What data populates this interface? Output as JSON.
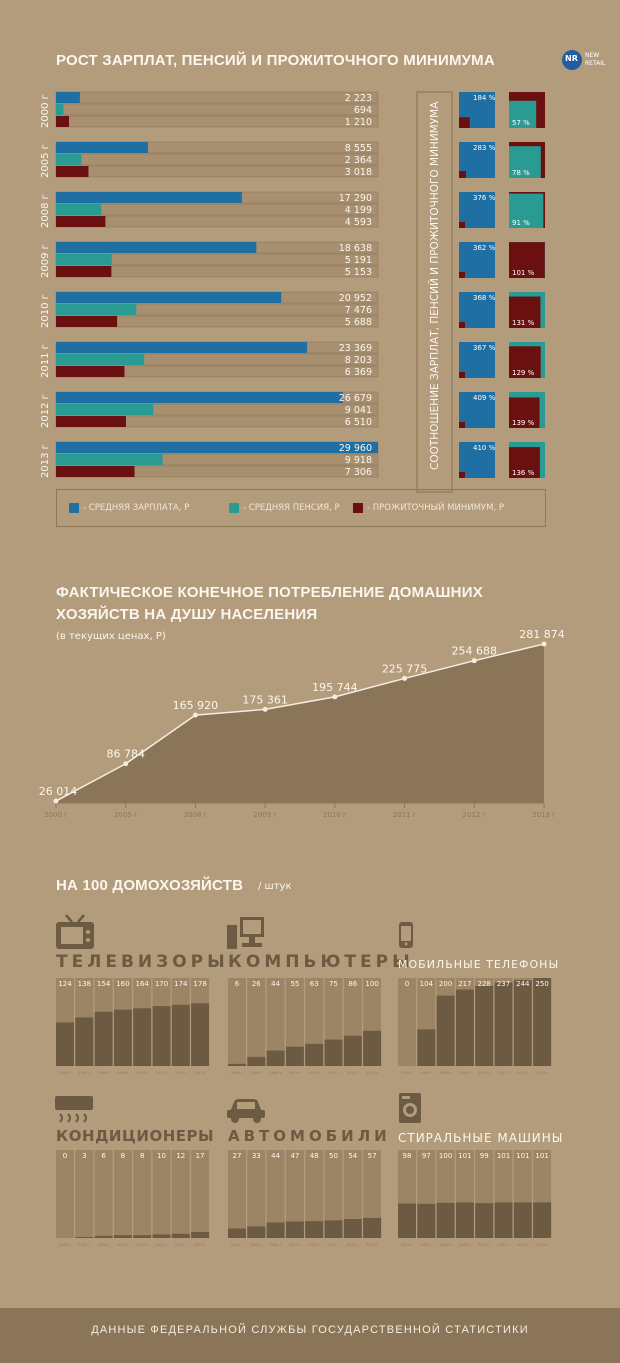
{
  "section1": {
    "title": "РОСТ ЗАРПЛАТ, ПЕНСИЙ И ПРОЖИТОЧНОГО МИНИМУМА",
    "logo": {
      "abbr": "NR",
      "line1": "NEW",
      "line2": "RETAIL"
    },
    "ratio_label": "СООТНОШЕНИЕ ЗАРПЛАТ, ПЕНСИЙ И ПРОЖИТОЧНОГО МИНИМУМА",
    "legend": [
      "- СРЕДНЯЯ ЗАРПЛАТА, Р",
      "- СРЕДНЯЯ ПЕНСИЯ, Р",
      "- ПРОЖИТОЧНЫЙ МИНИМУМ, Р"
    ]
  },
  "section2": {
    "title_line1": "ФАКТИЧЕСКОЕ КОНЕЧНОЕ ПОТРЕБЛЕНИЕ ДОМАШНИХ",
    "title_line2": "ХОЗЯЙСТВ НА ДУШУ НАСЕЛЕНИЯ",
    "subtitle": "(в текущих ценах, Р)"
  },
  "section3": {
    "title": "НА 100 ДОМОХОЗЯЙСТВ",
    "unit": "/ штук"
  },
  "footer": "ДАННЫЕ ФЕДЕРАЛЬНОЙ СЛУЖБЫ ГОСУДАРСТВЕННОЙ СТАТИСТИКИ",
  "colors": {
    "salary": "#1f6fa3",
    "pension": "#2a9b92",
    "minimum": "#6b1010",
    "track": "#a78f6f",
    "dark": "#6d5a43"
  },
  "chart_data": [
    {
      "type": "bar",
      "orientation": "horizontal",
      "categories": [
        "2000 г",
        "2005 г",
        "2008 г",
        "2009 г",
        "2010 г",
        "2011 г",
        "2012 г",
        "2013 г"
      ],
      "labels": {
        "salary": [
          "2 223",
          "8 555",
          "17 290",
          "18 638",
          "20 952",
          "23 369",
          "26 679",
          "29 960"
        ],
        "pension": [
          "694",
          "2 364",
          "4 199",
          "5 191",
          "7 476",
          "8 203",
          "9 041",
          "9 918"
        ],
        "minimum": [
          "1 210",
          "3 018",
          "4 593",
          "5 153",
          "5 688",
          "6 369",
          "6 510",
          "7 306"
        ]
      },
      "series": [
        {
          "key": "salary",
          "name": "- СРЕДНЯЯ ЗАРПЛАТА, Р",
          "values": [
            2223,
            8555,
            17290,
            18638,
            20952,
            23369,
            26679,
            29960
          ]
        },
        {
          "key": "pension",
          "name": "- СРЕДНЯЯ ПЕНСИЯ, Р",
          "values": [
            694,
            2364,
            4199,
            5191,
            7476,
            8203,
            9041,
            9918
          ]
        },
        {
          "key": "minimum",
          "name": "- ПРОЖИТОЧНЫЙ МИНИМУМ, Р",
          "values": [
            1210,
            3018,
            4593,
            5153,
            5688,
            6369,
            6510,
            7306
          ]
        }
      ],
      "xlim": [
        0,
        29960
      ]
    },
    {
      "type": "table",
      "columns": [
        "salary_to_minimum",
        "pension_to_minimum"
      ],
      "labels_left": [
        "184 %",
        "283 %",
        "376 %",
        "362 %",
        "368 %",
        "367 %",
        "409 %",
        "410 %"
      ],
      "labels_right": [
        "57 %",
        "78 %",
        "91 %",
        "101 %",
        "131 %",
        "129 %",
        "139 %",
        "136 %"
      ],
      "values_left": [
        184,
        283,
        376,
        362,
        368,
        367,
        409,
        410
      ],
      "values_right": [
        57,
        78,
        91,
        101,
        131,
        129,
        139,
        136
      ]
    },
    {
      "type": "area",
      "x": [
        "2000 г",
        "2005 г",
        "2008 г",
        "2009 г",
        "2010 г",
        "2011 г",
        "2012 г",
        "2013 г"
      ],
      "values": [
        26014,
        86784,
        165920,
        175361,
        195744,
        225775,
        254688,
        281874
      ],
      "labels": [
        "26 014",
        "86 784",
        "165 920",
        "175 361",
        "195 744",
        "225 775",
        "254 688",
        "281 874"
      ],
      "ylim": [
        0,
        281874
      ]
    },
    {
      "type": "bar",
      "panels": [
        {
          "title": "ТЕЛЕВИЗОРЫ",
          "icon": "tv-icon",
          "values": [
            124,
            138,
            154,
            160,
            164,
            170,
            174,
            178
          ],
          "max": 250
        },
        {
          "title": "КОМПЬЮТЕРЫ",
          "icon": "computer-icon",
          "values": [
            6,
            26,
            44,
            55,
            63,
            75,
            86,
            100
          ],
          "max": 250
        },
        {
          "title": "МОБИЛЬНЫЕ ТЕЛЕФОНЫ",
          "icon": "phone-icon",
          "values": [
            0,
            104,
            200,
            217,
            228,
            237,
            244,
            250
          ],
          "max": 250
        },
        {
          "title": "КОНДИЦИОНЕРЫ",
          "icon": "air-conditioner-icon",
          "values": [
            0,
            3,
            6,
            8,
            8,
            10,
            12,
            17
          ],
          "max": 250
        },
        {
          "title": "АВТОМОБИЛИ",
          "icon": "car-icon",
          "values": [
            27,
            33,
            44,
            47,
            48,
            50,
            54,
            57
          ],
          "max": 250
        },
        {
          "title": "СТИРАЛЬНЫЕ МАШИНЫ",
          "icon": "washing-machine-icon",
          "values": [
            98,
            97,
            100,
            101,
            99,
            101,
            101,
            101
          ],
          "max": 250
        }
      ]
    }
  ]
}
